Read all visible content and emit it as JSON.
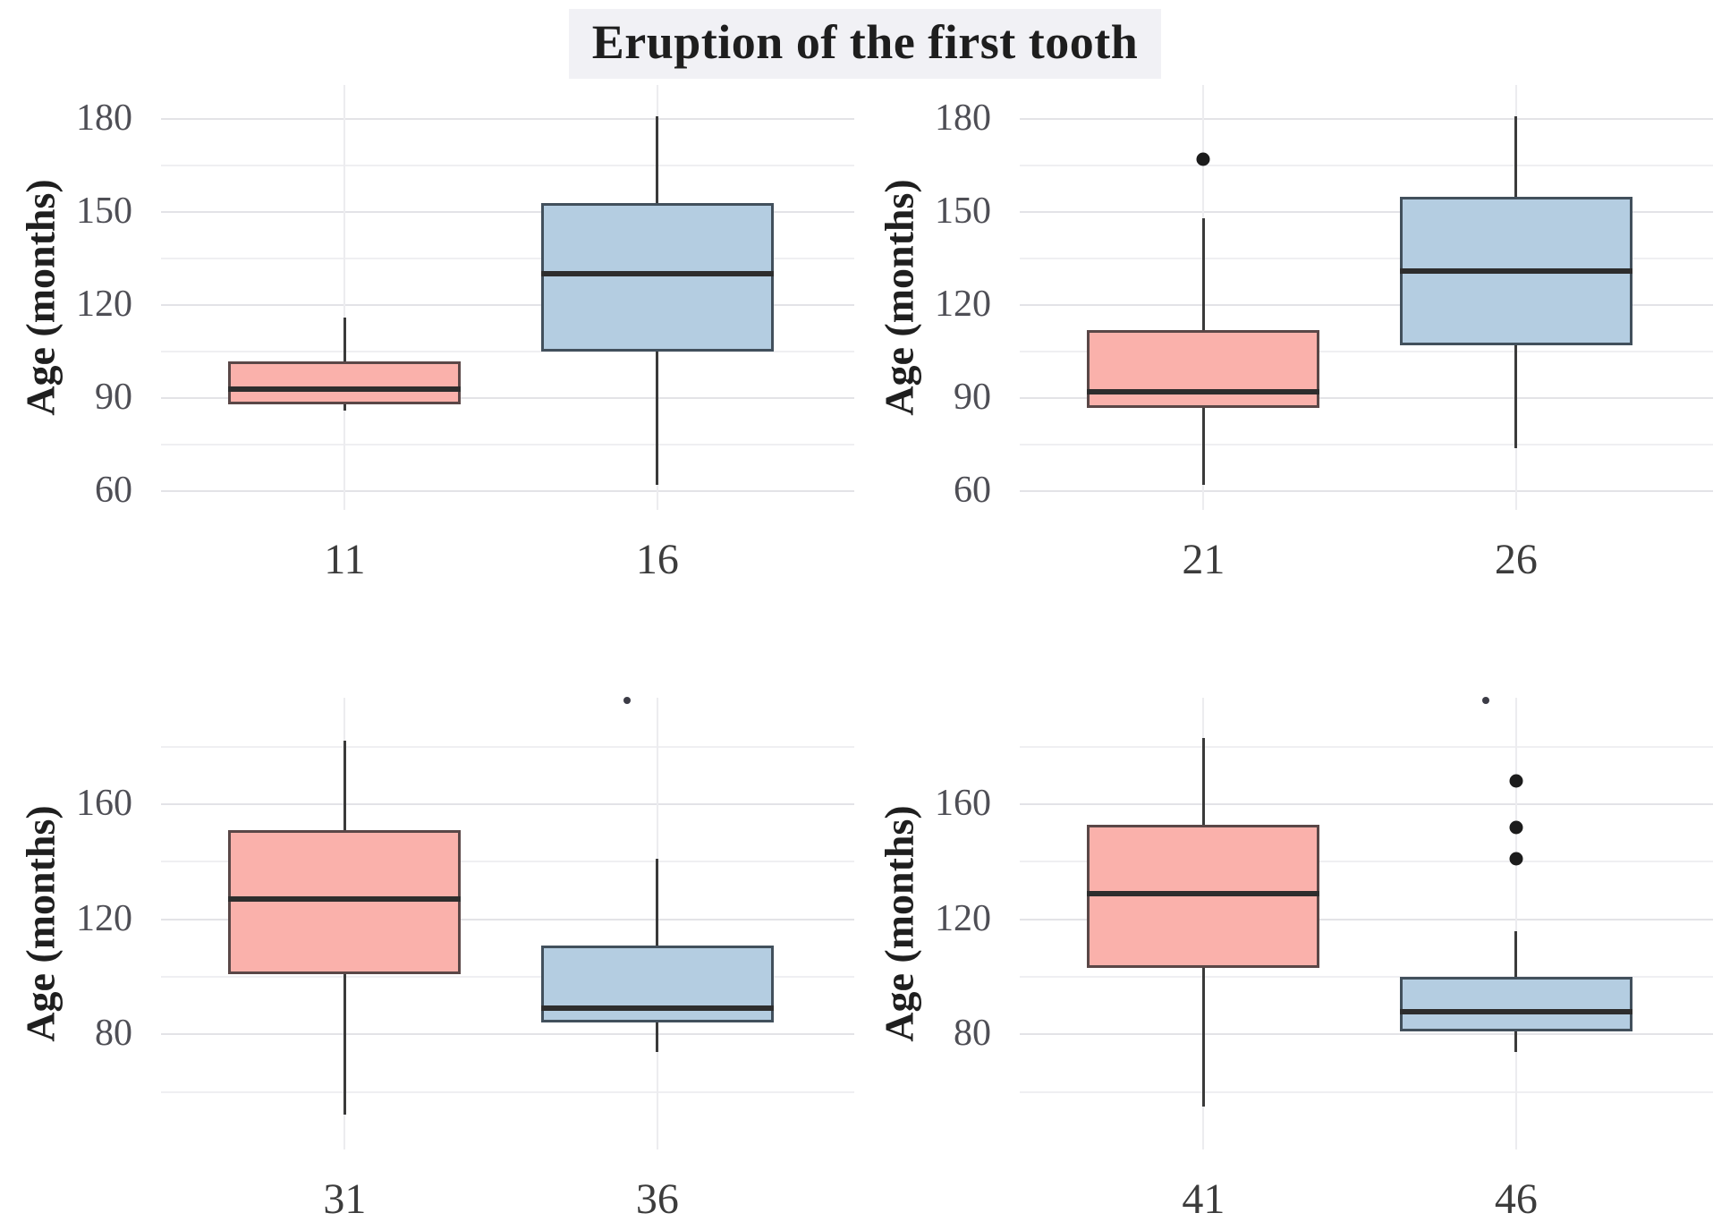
{
  "title": "Eruption of the first tooth",
  "ylabel": "Age (months)",
  "colors": {
    "pink_fill": "#FAB1AB",
    "blue_fill": "#B4CDE1",
    "pink_border": "#5a4747",
    "blue_border": "#42505c",
    "median": "#2d2d2d",
    "whisker": "#3a3a3a",
    "outlier": "#1c1c1c",
    "grid_major": "#e3e3e7",
    "grid_minor": "#efeff2",
    "tick_text": "#4e4e55",
    "title_bg": "#f1f1f5"
  },
  "chart_data": {
    "type": "boxplot-grid",
    "title": "Eruption of the first tooth",
    "ylabel": "Age (months)",
    "grid": "major+minor, light gray, white panel background",
    "panels": [
      {
        "position": "top_left",
        "yticks": [
          180,
          150,
          120,
          90,
          60
        ],
        "yticks_minor": [
          165,
          135,
          105,
          75
        ],
        "ylim": [
          54,
          191
        ],
        "categories": [
          "11",
          "16"
        ],
        "boxes": [
          {
            "category": "11",
            "color": "pink",
            "whisker_low": 86,
            "q1": 88,
            "median": 93,
            "q3": 102,
            "whisker_high": 116,
            "outliers": [],
            "clipped_outliers": []
          },
          {
            "category": "16",
            "color": "blue",
            "whisker_low": 62,
            "q1": 105,
            "median": 130,
            "q3": 153,
            "whisker_high": 181,
            "outliers": [],
            "clipped_outliers": []
          }
        ]
      },
      {
        "position": "top_right",
        "yticks": [
          180,
          150,
          120,
          90,
          60
        ],
        "yticks_minor": [
          165,
          135,
          105,
          75
        ],
        "ylim": [
          54,
          191
        ],
        "categories": [
          "21",
          "26"
        ],
        "boxes": [
          {
            "category": "21",
            "color": "pink",
            "whisker_low": 62,
            "q1": 87,
            "median": 92,
            "q3": 112,
            "whisker_high": 148,
            "outliers": [
              167
            ],
            "clipped_outliers": []
          },
          {
            "category": "26",
            "color": "blue",
            "whisker_low": 74,
            "q1": 107,
            "median": 131,
            "q3": 155,
            "whisker_high": 181,
            "outliers": [],
            "clipped_outliers": []
          }
        ]
      },
      {
        "position": "bottom_left",
        "yticks": [
          160,
          120,
          80
        ],
        "yticks_minor": [
          180,
          140,
          100,
          60
        ],
        "ylim": [
          40,
          197
        ],
        "categories": [
          "31",
          "36"
        ],
        "boxes": [
          {
            "category": "31",
            "color": "pink",
            "whisker_low": 52,
            "q1": 101,
            "median": 127,
            "q3": 151,
            "whisker_high": 182,
            "outliers": [],
            "clipped_outliers": []
          },
          {
            "category": "36",
            "color": "blue",
            "whisker_low": 74,
            "q1": 84,
            "median": 89,
            "q3": 111,
            "whisker_high": 141,
            "outliers": [],
            "clipped_outliers": [
              196
            ]
          }
        ]
      },
      {
        "position": "bottom_right",
        "yticks": [
          160,
          120,
          80
        ],
        "yticks_minor": [
          180,
          140,
          100,
          60
        ],
        "ylim": [
          40,
          197
        ],
        "categories": [
          "41",
          "46"
        ],
        "boxes": [
          {
            "category": "41",
            "color": "pink",
            "whisker_low": 55,
            "q1": 103,
            "median": 129,
            "q3": 153,
            "whisker_high": 183,
            "outliers": [],
            "clipped_outliers": []
          },
          {
            "category": "46",
            "color": "blue",
            "whisker_low": 74,
            "q1": 81,
            "median": 88,
            "q3": 100,
            "whisker_high": 116,
            "outliers": [
              141,
              152,
              168
            ],
            "clipped_outliers": [
              196
            ]
          }
        ]
      }
    ]
  }
}
